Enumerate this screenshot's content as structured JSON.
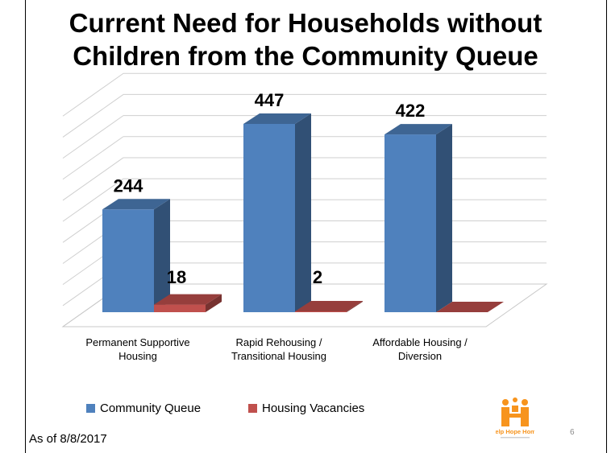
{
  "title": {
    "line1": "Current Need for Households without",
    "line2": "Children from the Community Queue"
  },
  "chart_data": {
    "type": "bar",
    "title": "Current Need for Households without Children from the Community Queue",
    "categories": [
      [
        "Permanent Supportive",
        "Housing"
      ],
      [
        "Rapid Rehousing /",
        "Transitional Housing"
      ],
      [
        "Affordable Housing /",
        "Diversion"
      ]
    ],
    "series": [
      {
        "name": "Community Queue",
        "values": [
          244,
          447,
          422
        ],
        "labels": [
          "244",
          "447",
          "422"
        ],
        "color": "#4f81bd"
      },
      {
        "name": "Housing Vacancies",
        "values": [
          18,
          2,
          0
        ],
        "labels": [
          "18",
          "2",
          ""
        ],
        "color": "#c0504d"
      }
    ],
    "ylim": [
      0,
      500
    ],
    "grid": true,
    "legend_position": "bottom",
    "style": "3d-clustered-column"
  },
  "legend": {
    "community_queue": "Community Queue",
    "housing_vacancies": "Housing Vacancies"
  },
  "footer": {
    "as_of": "As of 8/8/2017"
  },
  "page_number": "6",
  "logo": {
    "text": "Help Hope Home",
    "icon": "house-family-logo-icon",
    "color": "#f7941d"
  }
}
